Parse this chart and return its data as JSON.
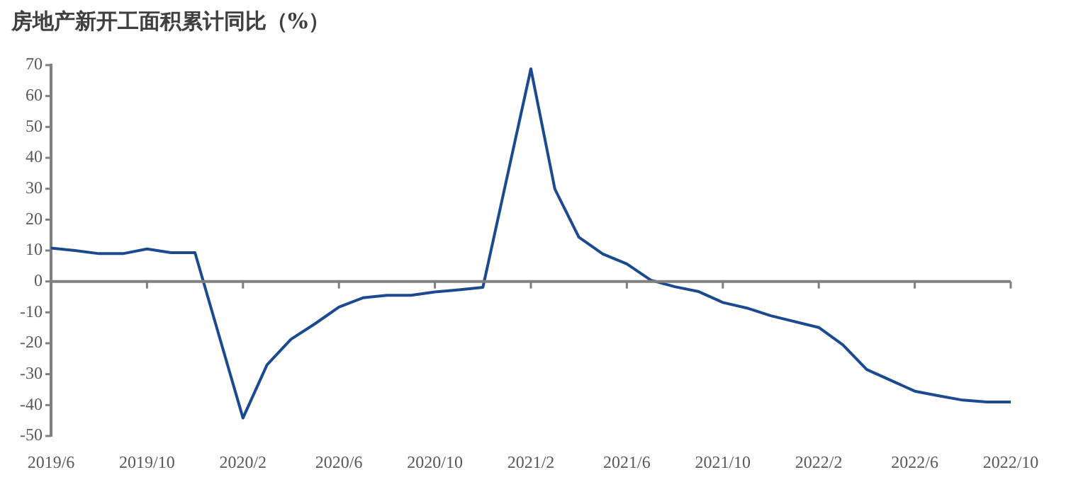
{
  "chart_data": {
    "type": "line",
    "title": "房地产新开工面积累计同比（%）",
    "categories": [
      "2019/6",
      null,
      null,
      null,
      "2019/10",
      null,
      null,
      null,
      "2020/2",
      null,
      null,
      null,
      "2020/6",
      null,
      null,
      null,
      "2020/10",
      null,
      null,
      null,
      "2021/2",
      null,
      null,
      null,
      "2021/6",
      null,
      null,
      null,
      "2021/10",
      null,
      null,
      null,
      "2022/2",
      null,
      null,
      null,
      "2022/6",
      null,
      null,
      null,
      "2022/10"
    ],
    "series": [
      {
        "color": "#1b4a91",
        "values": [
          10.8,
          10,
          9,
          9,
          10.5,
          9.3,
          9.3,
          null,
          -44.2,
          -27,
          -18.7,
          -13.7,
          -8.3,
          -5.3,
          -4.5,
          -4.5,
          -3.4,
          -2.7,
          -1.9,
          null,
          68.8,
          29.9,
          14.3,
          8.9,
          5.7,
          0.4,
          -1.7,
          -3.3,
          -6.8,
          -8.6,
          -11.1,
          null,
          -14.9,
          -20.5,
          -28.5,
          -32,
          -35.5,
          -37,
          -38.4,
          -39,
          -39
        ]
      }
    ],
    "ylim": [
      -50,
      70
    ],
    "yticks": [
      -50,
      -40,
      -30,
      -20,
      -10,
      0,
      10,
      20,
      30,
      40,
      50,
      60,
      70
    ],
    "ref_lines": [
      {
        "axis": "y",
        "value": 0,
        "color": "#808080"
      }
    ],
    "grid": false,
    "marker": "none"
  }
}
